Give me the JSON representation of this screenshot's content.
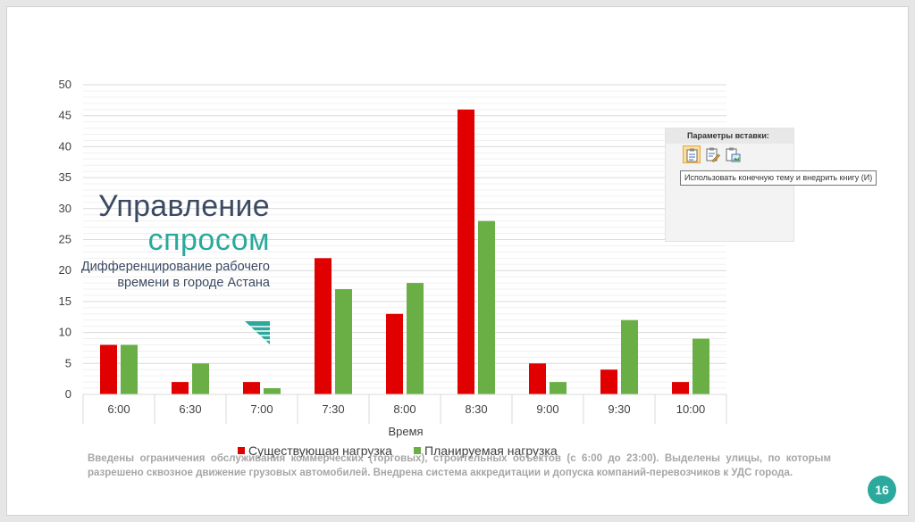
{
  "chart_data": {
    "type": "bar",
    "categories": [
      "6:00",
      "6:30",
      "7:00",
      "7:30",
      "8:00",
      "8:30",
      "9:00",
      "9:30",
      "10:00"
    ],
    "series": [
      {
        "name": "Существующая нагрузка",
        "values": [
          8,
          2,
          2,
          22,
          13,
          46,
          5,
          4,
          2
        ],
        "color": "#e00000"
      },
      {
        "name": "Планируемая нагрузка",
        "values": [
          8,
          5,
          1,
          17,
          18,
          28,
          2,
          12,
          9
        ],
        "color": "#6aaf45"
      }
    ],
    "title": "",
    "xlabel": "Время",
    "ylabel": "",
    "ylim": [
      0,
      50
    ],
    "yticks": [
      0,
      5,
      10,
      15,
      20,
      25,
      30,
      35,
      40,
      45,
      50
    ],
    "grid": true,
    "legend_position": "bottom"
  },
  "overlay_title": {
    "main": "Управление",
    "accent": "спросом",
    "subtitle": "Дифференцирование рабочего времени в городе Астана"
  },
  "body_text": "Введены ограничения обслуживания коммерческих (торговых), строительных объектов (с 6:00 до 23:00). Выделены улицы, по которым разрешено сквозное движение грузовых автомобилей. Внедрена система аккредитации и допуска компаний-перевозчиков к УДС города.",
  "slide_number": "16",
  "paste_options": {
    "title": "Параметры вставки:",
    "tooltip": "Использовать конечную тему и внедрить книгу (И)",
    "icons": [
      "paste-keep-destination-icon",
      "paste-keep-source-icon",
      "paste-picture-icon"
    ]
  },
  "colors": {
    "accent": "#2aa99c",
    "title": "#3b4a63",
    "series_1": "#e00000",
    "series_2": "#6aaf45"
  }
}
